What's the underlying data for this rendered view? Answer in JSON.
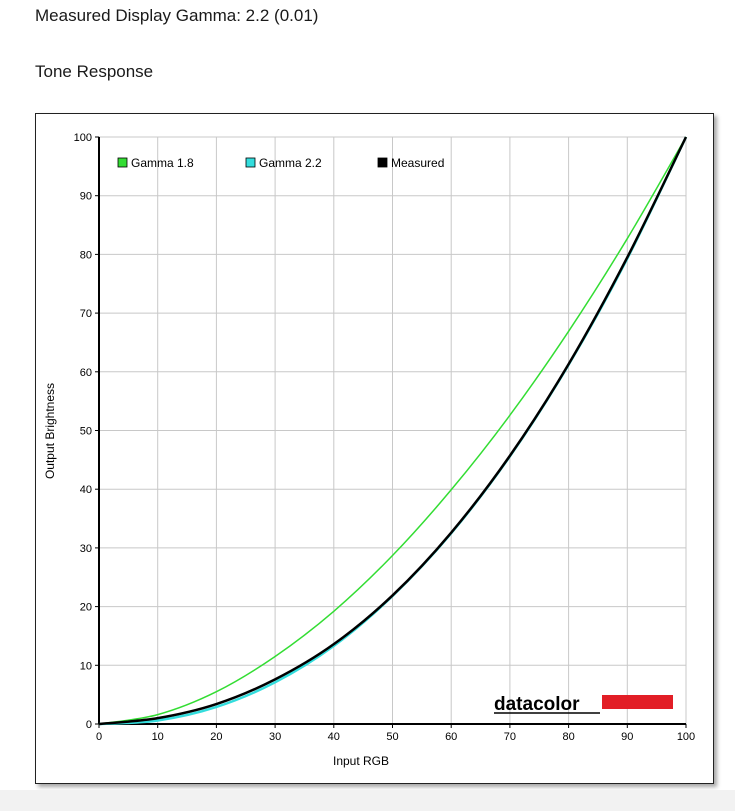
{
  "header": {
    "measured_gamma": "Measured Display Gamma: 2.2 (0.01)",
    "section_title": "Tone Response"
  },
  "brand": {
    "logo_text": "datacolor",
    "logo_bar_color": "#e21e26"
  },
  "colors": {
    "gamma18": "#33dd33",
    "gamma22": "#33dddd",
    "measured": "#000000"
  },
  "chart_data": {
    "type": "line",
    "xlabel": "Input RGB",
    "ylabel": "Output Brightness",
    "xlim": [
      0,
      100
    ],
    "ylim": [
      0,
      100
    ],
    "xticks": [
      0,
      10,
      20,
      30,
      40,
      50,
      60,
      70,
      80,
      90,
      100
    ],
    "yticks": [
      0,
      10,
      20,
      30,
      40,
      50,
      60,
      70,
      80,
      90,
      100
    ],
    "grid": true,
    "legend_position": "top-left",
    "x": [
      0,
      10,
      20,
      30,
      40,
      50,
      60,
      70,
      80,
      90,
      100
    ],
    "series": [
      {
        "name": "Gamma 1.8",
        "values": [
          0,
          1.6,
          5.5,
          11.5,
          19.2,
          28.7,
          39.9,
          52.6,
          66.9,
          82.7,
          100
        ]
      },
      {
        "name": "Gamma 2.2",
        "values": [
          0,
          0.6,
          2.9,
          7.1,
          13.3,
          21.8,
          32.5,
          45.6,
          61.2,
          79.3,
          100
        ]
      },
      {
        "name": "Measured",
        "values": [
          0,
          1.0,
          3.4,
          7.6,
          13.6,
          21.9,
          32.6,
          45.7,
          61.3,
          79.5,
          100
        ]
      }
    ]
  }
}
